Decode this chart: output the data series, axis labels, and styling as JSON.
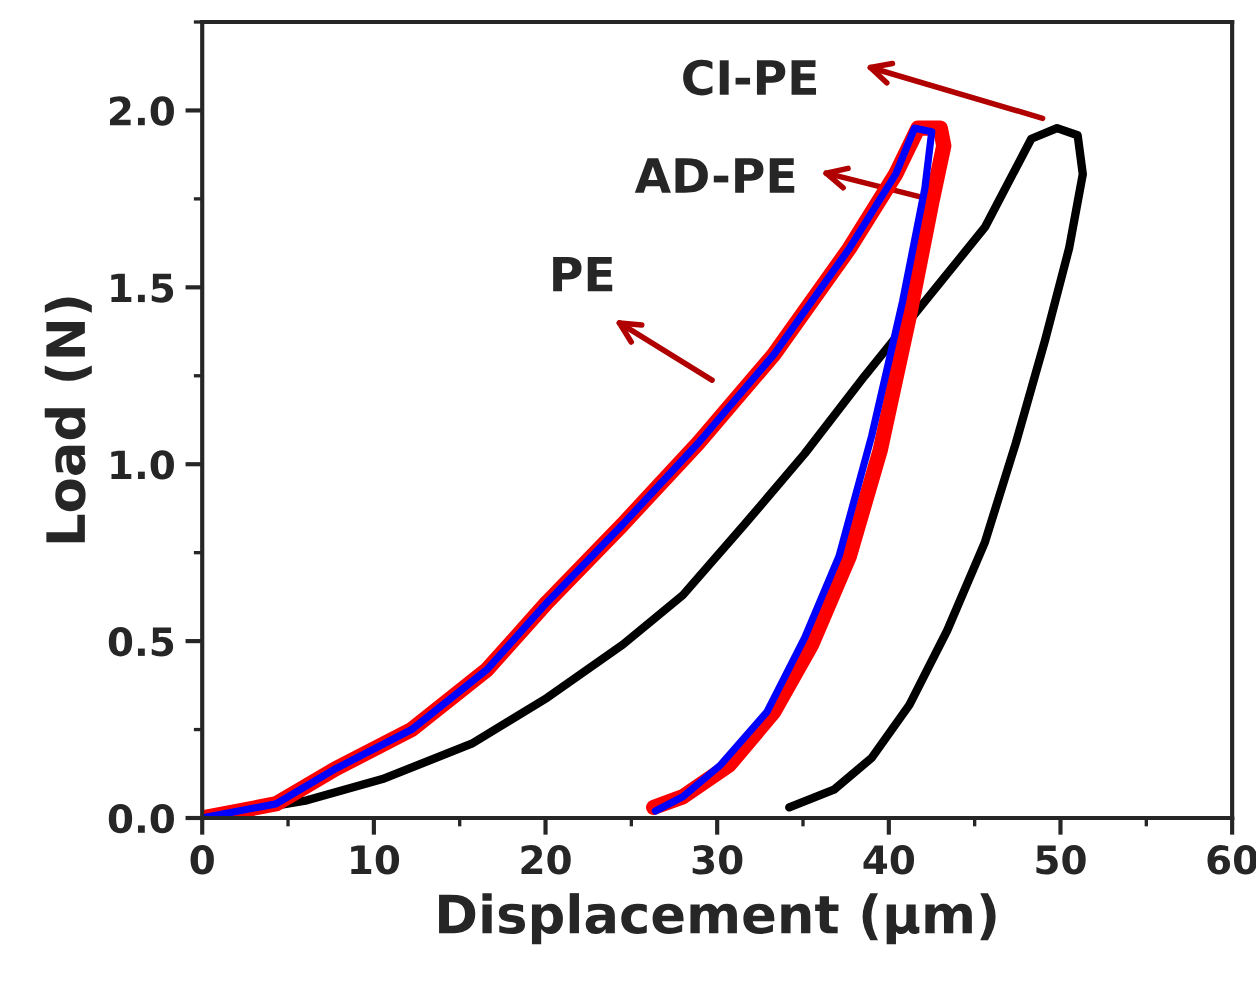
{
  "chart_data": {
    "type": "line",
    "xlabel": "Displacement (μm)",
    "ylabel": "Load (N)",
    "xlim": [
      0,
      60
    ],
    "xticks": [
      0,
      10,
      20,
      30,
      40,
      50,
      60
    ],
    "ylim": [
      0,
      2.25
    ],
    "yticks": [
      {
        "value": 0,
        "label": "0.0"
      },
      {
        "value": 0.5,
        "label": "0.5"
      },
      {
        "value": 1.0,
        "label": "1.0"
      },
      {
        "value": 1.5,
        "label": "1.5"
      },
      {
        "value": 2.0,
        "label": "2.0"
      }
    ],
    "grid": false,
    "legend": false,
    "marker": "none",
    "line_style": "solid",
    "series": [
      {
        "color": "#000000",
        "x": [
          0,
          6.1,
          10.5,
          15.7,
          20.1,
          24.5,
          28,
          31.6,
          35.1,
          38.6,
          42.1,
          45.6,
          48.3,
          49.8,
          51,
          51.3,
          50.5,
          49.1,
          47.4,
          45.6,
          43.4,
          41.2,
          39,
          36.8,
          34.2
        ],
        "values": [
          0,
          0.05,
          0.11,
          0.21,
          0.34,
          0.49,
          0.63,
          0.83,
          1.03,
          1.25,
          1.46,
          1.67,
          1.92,
          1.95,
          1.93,
          1.82,
          1.61,
          1.35,
          1.06,
          0.78,
          0.53,
          0.32,
          0.17,
          0.08,
          0.03
        ]
      },
      {
        "color": "#ff0000",
        "x": [
          0,
          4.3,
          7.8,
          12.2,
          16.6,
          20.1,
          24.5,
          28.9,
          33.3,
          37.7,
          40.4,
          41.7,
          43,
          43.2,
          42.5,
          41.2,
          39.5,
          37.7,
          35.5,
          33.3,
          30.7,
          28,
          26.3
        ],
        "values": [
          0,
          0.04,
          0.14,
          0.25,
          0.42,
          0.61,
          0.83,
          1.06,
          1.31,
          1.61,
          1.82,
          1.95,
          1.95,
          1.9,
          1.74,
          1.42,
          1.04,
          0.74,
          0.49,
          0.3,
          0.15,
          0.06,
          0.03
        ]
      },
      {
        "color": "#0000ff",
        "x": [
          0,
          4.3,
          7.8,
          12.2,
          16.6,
          20.1,
          24.5,
          28.9,
          33.3,
          37.7,
          40.4,
          41.5,
          42.5,
          42.1,
          40.8,
          39,
          37.1,
          35.1,
          32.9,
          30.2,
          28,
          26.4
        ],
        "values": [
          0,
          0.04,
          0.14,
          0.25,
          0.42,
          0.61,
          0.83,
          1.06,
          1.31,
          1.61,
          1.82,
          1.95,
          1.94,
          1.78,
          1.46,
          1.08,
          0.74,
          0.51,
          0.3,
          0.15,
          0.06,
          0.02
        ]
      }
    ],
    "annotations": [
      "CI-PE",
      {
        "text": "AD-PE",
        "x": 42.3,
        "y": 1.75
      },
      "PE"
    ]
  }
}
